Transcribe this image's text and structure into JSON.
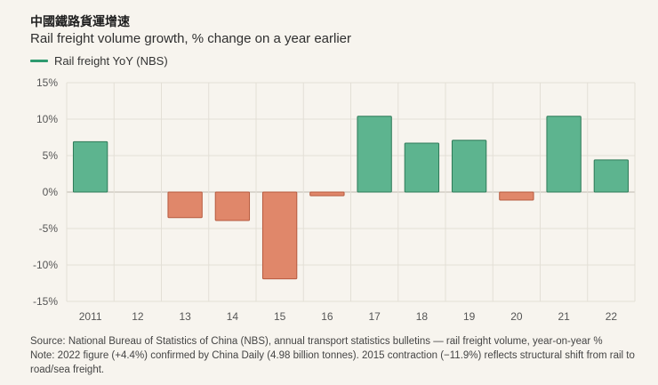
{
  "header": {
    "title": "中國鐵路貨運增速",
    "subtitle": "Rail freight volume growth, % change on a year earlier"
  },
  "legend": {
    "label": "Rail freight YoY (NBS)"
  },
  "colors": {
    "positive": "#5db48f",
    "positive_stroke": "#2e7a58",
    "negative": "#e0876a",
    "negative_stroke": "#b65a3f",
    "legend_line": "#2e9a6f"
  },
  "chart_data": {
    "type": "bar",
    "categories": [
      "2011",
      "12",
      "13",
      "14",
      "15",
      "16",
      "17",
      "18",
      "19",
      "20",
      "21",
      "22"
    ],
    "values": [
      6.9,
      0.0,
      -3.5,
      -3.9,
      -11.9,
      -0.5,
      10.4,
      6.7,
      7.1,
      -1.1,
      10.4,
      4.4
    ],
    "series": [
      {
        "name": "Rail freight YoY (NBS)",
        "values": [
          6.9,
          0.0,
          -3.5,
          -3.9,
          -11.9,
          -0.5,
          10.4,
          6.7,
          7.1,
          -1.1,
          10.4,
          4.4
        ]
      }
    ],
    "title": "中國鐵路貨運增速",
    "subtitle": "Rail freight volume growth, % change on a year earlier",
    "ylim": [
      -15,
      15
    ],
    "yticks": [
      15,
      10,
      5,
      0,
      -5,
      -10,
      -15
    ],
    "ytick_labels": [
      "15%",
      "10%",
      "5%",
      "0%",
      "-5%",
      "-10%",
      "-15%"
    ],
    "grid": true,
    "legend_position": "top-left"
  },
  "footer": {
    "source": "Source: National Bureau of Statistics of China (NBS), annual transport statistics bulletins — rail freight volume, year-on-year %",
    "note": "Note: 2022 figure (+4.4%) confirmed by China Daily (4.98 billion tonnes). 2015 contraction (−11.9%) reflects structural shift from rail to road/sea freight."
  }
}
